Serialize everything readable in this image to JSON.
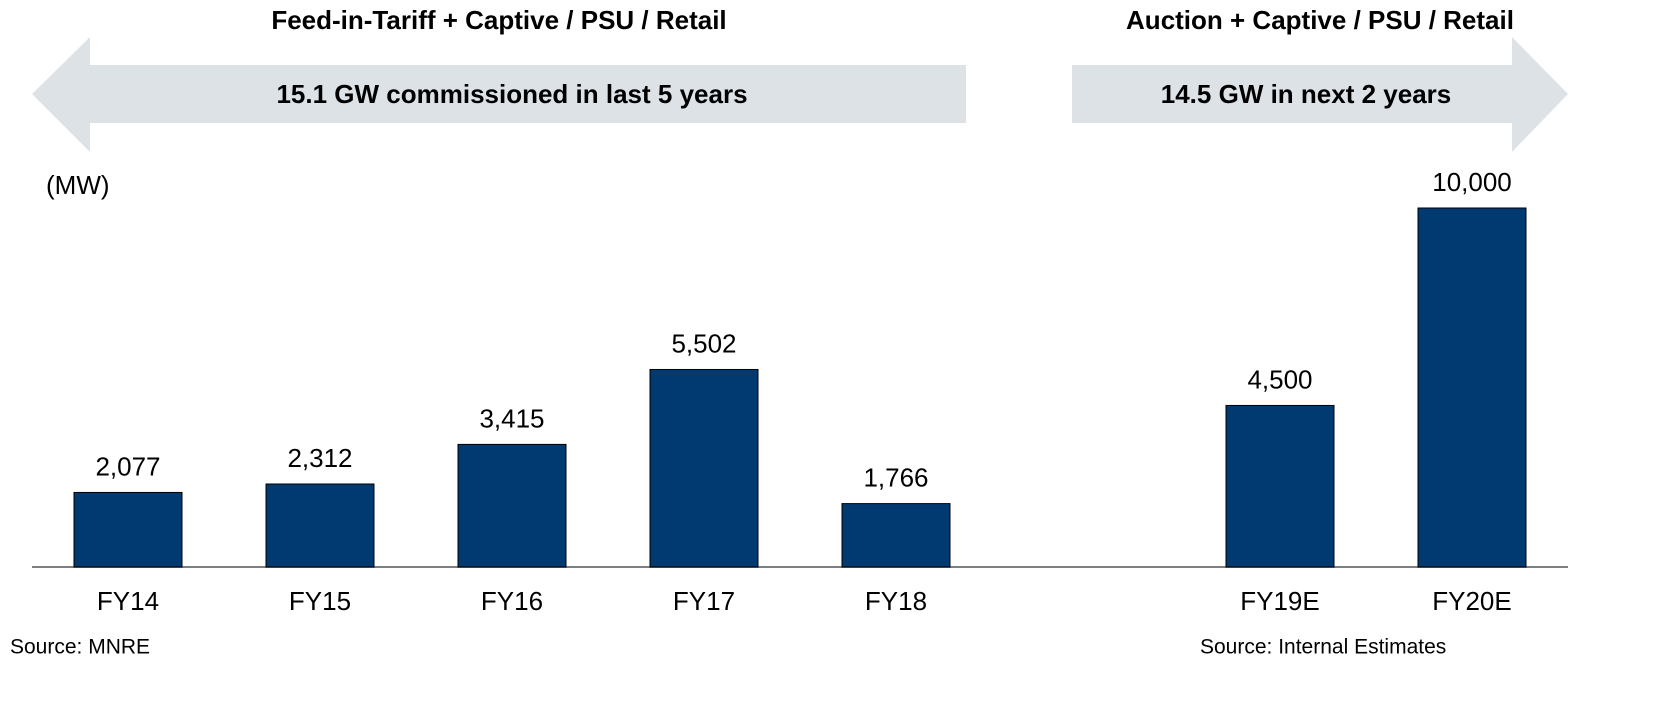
{
  "chart_data": {
    "type": "bar",
    "annotations": [
      "Feed-in-Tariff + Captive / PSU / Retail",
      "Auction  + Captive / PSU / Retail",
      "15.1 GW commissioned in last 5 years",
      "14.5 GW in next 2 years"
    ],
    "unit_label": "(MW)",
    "sources": [
      "Source: MNRE",
      "Source: Internal Estimates"
    ],
    "categories": [
      "FY14",
      "FY15",
      "FY16",
      "FY17",
      "FY18",
      null,
      "FY19E",
      "FY20E"
    ],
    "values": [
      2077,
      2312,
      3415,
      5502,
      1766,
      null,
      4500,
      10000
    ],
    "value_labels": [
      "2,077",
      "2,312",
      "3,415",
      "5,502",
      "1,766",
      null,
      "4,500",
      "10,000"
    ],
    "color": "#003a70",
    "ylim": [
      0,
      10000
    ],
    "grid": false
  }
}
